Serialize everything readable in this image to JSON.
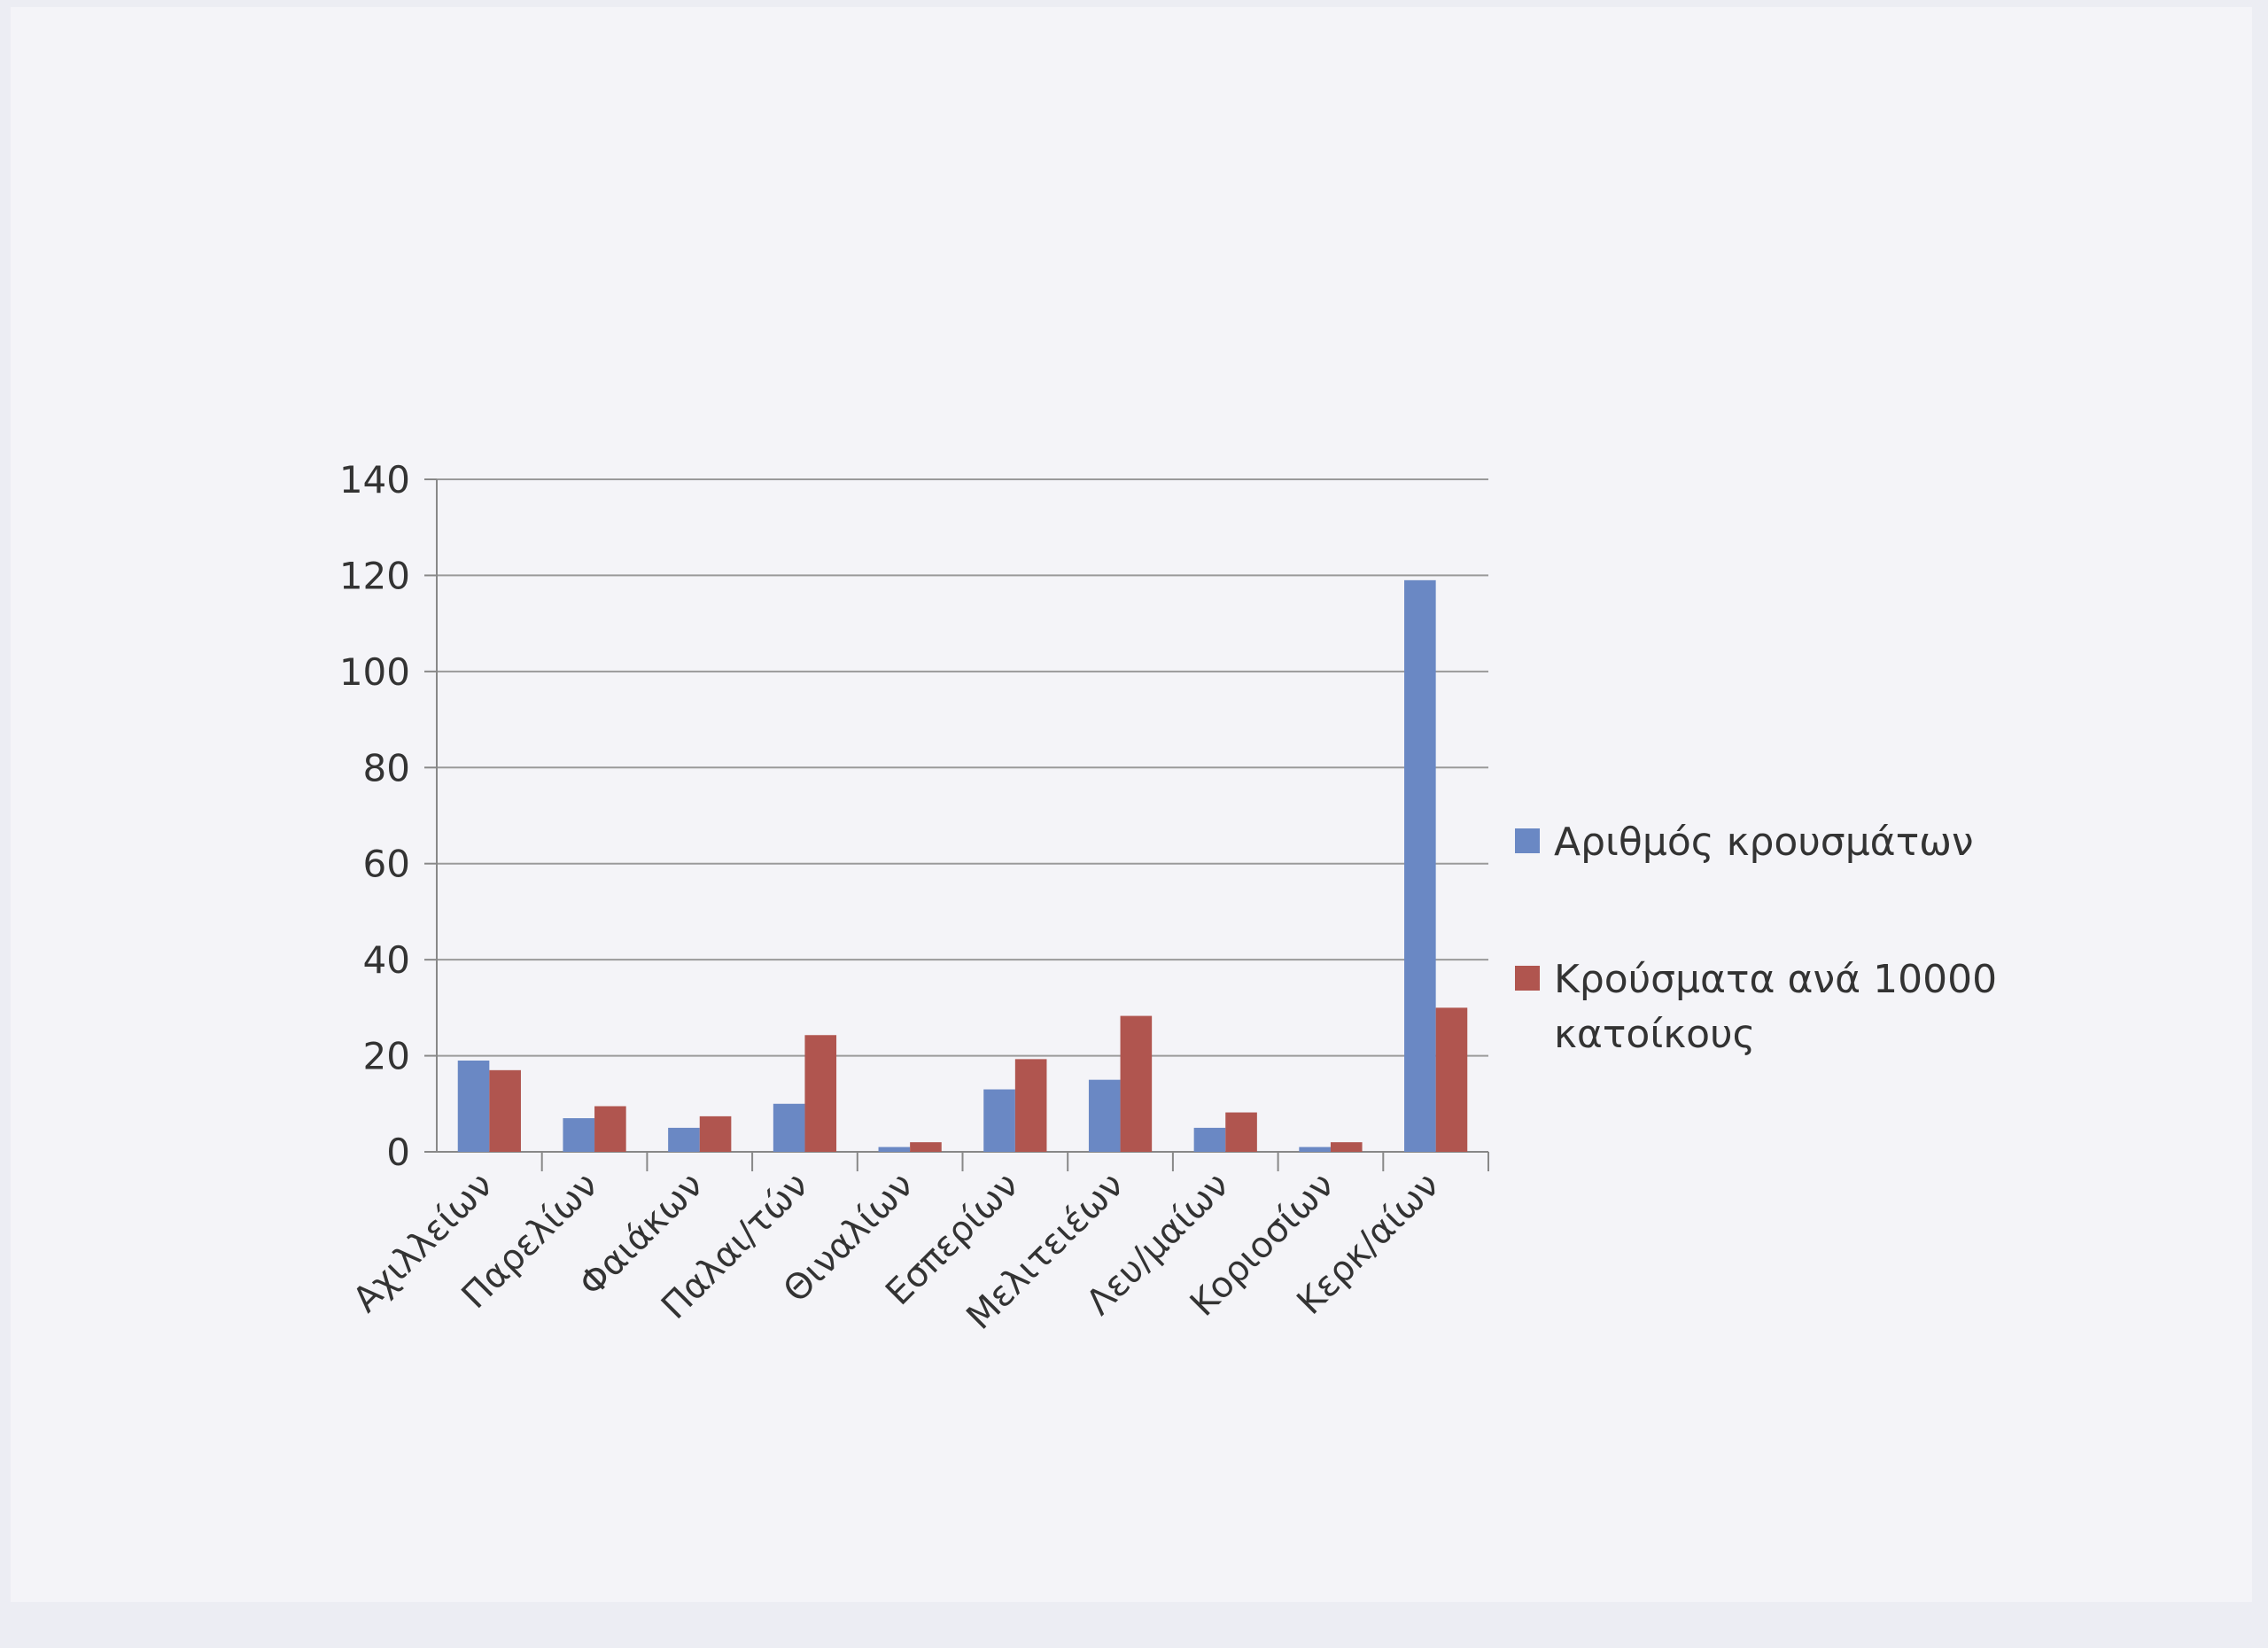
{
  "chart_data": {
    "type": "bar",
    "title": "",
    "xlabel": "",
    "ylabel": "",
    "ylim": [
      0,
      140
    ],
    "yticks": [
      0,
      20,
      40,
      60,
      80,
      100,
      120,
      140
    ],
    "grid": true,
    "legend_position": "right",
    "categories": [
      "Αχιλλείων",
      "Παρελίων",
      "Φαιάκων",
      "Παλαι/τών",
      "Θιναλίων",
      "Εσπερίων",
      "Μελιτειέων",
      "Λευ/μαίων",
      "Κοριοσίων",
      "Κερκ/αίων"
    ],
    "series": [
      {
        "name": "Αριθμός κρουσμάτων",
        "color": "#6a88c4",
        "values": [
          19,
          7,
          5,
          10,
          1,
          13,
          15,
          5,
          1,
          119
        ]
      },
      {
        "name": "Κρούσματα ανά 10000 κατοίκους",
        "legend_lines": [
          "Κρούσματα ανά 10000",
          "κατοίκους"
        ],
        "color": "#b0554f",
        "values": [
          17,
          9.5,
          7.4,
          24.3,
          2,
          19.3,
          28.3,
          8.2,
          2,
          30
        ]
      }
    ]
  }
}
